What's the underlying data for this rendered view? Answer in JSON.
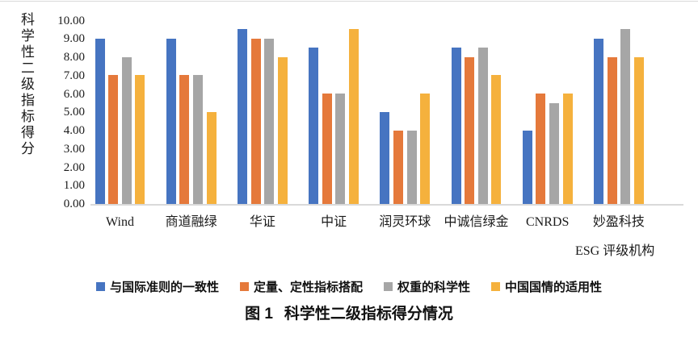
{
  "chart_data": {
    "type": "bar",
    "title": "图 1 科学性二级指标得分情况",
    "ylabel": "科学性二级指标得分",
    "xlabel": "ESG 评级机构",
    "categories": [
      "Wind",
      "商道融绿",
      "华证",
      "中证",
      "润灵环球",
      "中诚信绿金",
      "CNRDS",
      "妙盈科技"
    ],
    "series": [
      {
        "name": "与国际准则的一致性",
        "color": "#4674C1",
        "values": [
          9.0,
          9.0,
          9.5,
          8.5,
          5.0,
          8.5,
          4.0,
          9.0
        ]
      },
      {
        "name": "定量、定性指标搭配",
        "color": "#E5793B",
        "values": [
          7.0,
          7.0,
          9.0,
          6.0,
          4.0,
          8.0,
          6.0,
          8.0
        ]
      },
      {
        "name": "权重的科学性",
        "color": "#A6A6A6",
        "values": [
          8.0,
          7.0,
          9.0,
          6.0,
          4.0,
          8.5,
          5.5,
          9.5
        ]
      },
      {
        "name": "中国国情的适用性",
        "color": "#F5B13D",
        "values": [
          7.0,
          5.0,
          8.0,
          9.5,
          6.0,
          7.0,
          6.0,
          8.0
        ]
      }
    ],
    "ylim": [
      0,
      10
    ],
    "yticks": [
      "10.00",
      "9.00",
      "8.00",
      "7.00",
      "6.00",
      "5.00",
      "4.00",
      "3.00",
      "2.00",
      "1.00",
      "0.00"
    ],
    "grid": false,
    "legend_position": "bottom"
  },
  "caption": {
    "prefix": "图 1",
    "text": "科学性二级指标得分情况"
  }
}
